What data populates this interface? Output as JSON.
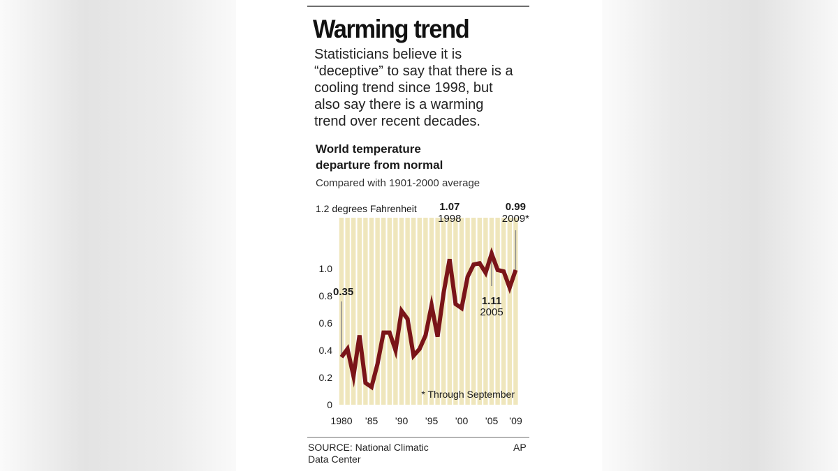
{
  "graphic": {
    "headline": "Warming trend",
    "lede": "Statisticians believe it is\n“deceptive” to say that there is a\ncooling trend since 1998, but\nalso say there is a warming\ntrend over recent decades.",
    "chart_title_line1": "World temperature",
    "chart_title_line2": "departure from normal",
    "chart_subtitle": "Compared with 1901-2000 average",
    "source": "SOURCE: National Climatic\nData Center",
    "credit": "AP"
  },
  "colors": {
    "line": "#7a1418",
    "stripe": "#efe6bc",
    "text": "#1a1a1a",
    "leader": "#8c8c8c"
  },
  "chart_data": {
    "type": "line",
    "unit_label": "1.2 degrees Fahrenheit",
    "x": [
      1980,
      1981,
      1982,
      1983,
      1984,
      1985,
      1986,
      1987,
      1988,
      1989,
      1990,
      1991,
      1992,
      1993,
      1994,
      1995,
      1996,
      1997,
      1998,
      1999,
      2000,
      2001,
      2002,
      2003,
      2004,
      2005,
      2006,
      2007,
      2008,
      2009
    ],
    "series": [
      {
        "values": [
          0.35,
          0.41,
          0.21,
          0.51,
          0.16,
          0.13,
          0.3,
          0.53,
          0.53,
          0.4,
          0.69,
          0.63,
          0.36,
          0.41,
          0.51,
          0.73,
          0.5,
          0.82,
          1.07,
          0.74,
          0.71,
          0.94,
          1.03,
          1.04,
          0.97,
          1.11,
          0.99,
          0.98,
          0.86,
          0.99
        ]
      }
    ],
    "ylim": [
      0,
      1.2
    ],
    "yticks": [
      0,
      0.2,
      0.4,
      0.6,
      0.8,
      1.0,
      1.2
    ],
    "ytick_labels": [
      "0",
      "0.2",
      "0.4",
      "0.6",
      "0.8",
      "1.0",
      ""
    ],
    "xticks": [
      1980,
      1985,
      1990,
      1995,
      2000,
      2005,
      2009
    ],
    "xtick_labels": [
      "1980",
      "’85",
      "’90",
      "’95",
      "’00",
      "’05",
      "’09"
    ],
    "grid": "vertical stripes per year",
    "annotations": [
      {
        "x": 1980,
        "y": 0.35,
        "value_label": "0.35",
        "year_label": ""
      },
      {
        "x": 1998,
        "y": 1.07,
        "value_label": "1.07",
        "year_label": "1998"
      },
      {
        "x": 2005,
        "y": 1.11,
        "value_label": "1.11",
        "year_label": "2005"
      },
      {
        "x": 2009,
        "y": 0.99,
        "value_label": "0.99",
        "year_label": "2009*"
      }
    ],
    "footnote": "* Through September"
  }
}
